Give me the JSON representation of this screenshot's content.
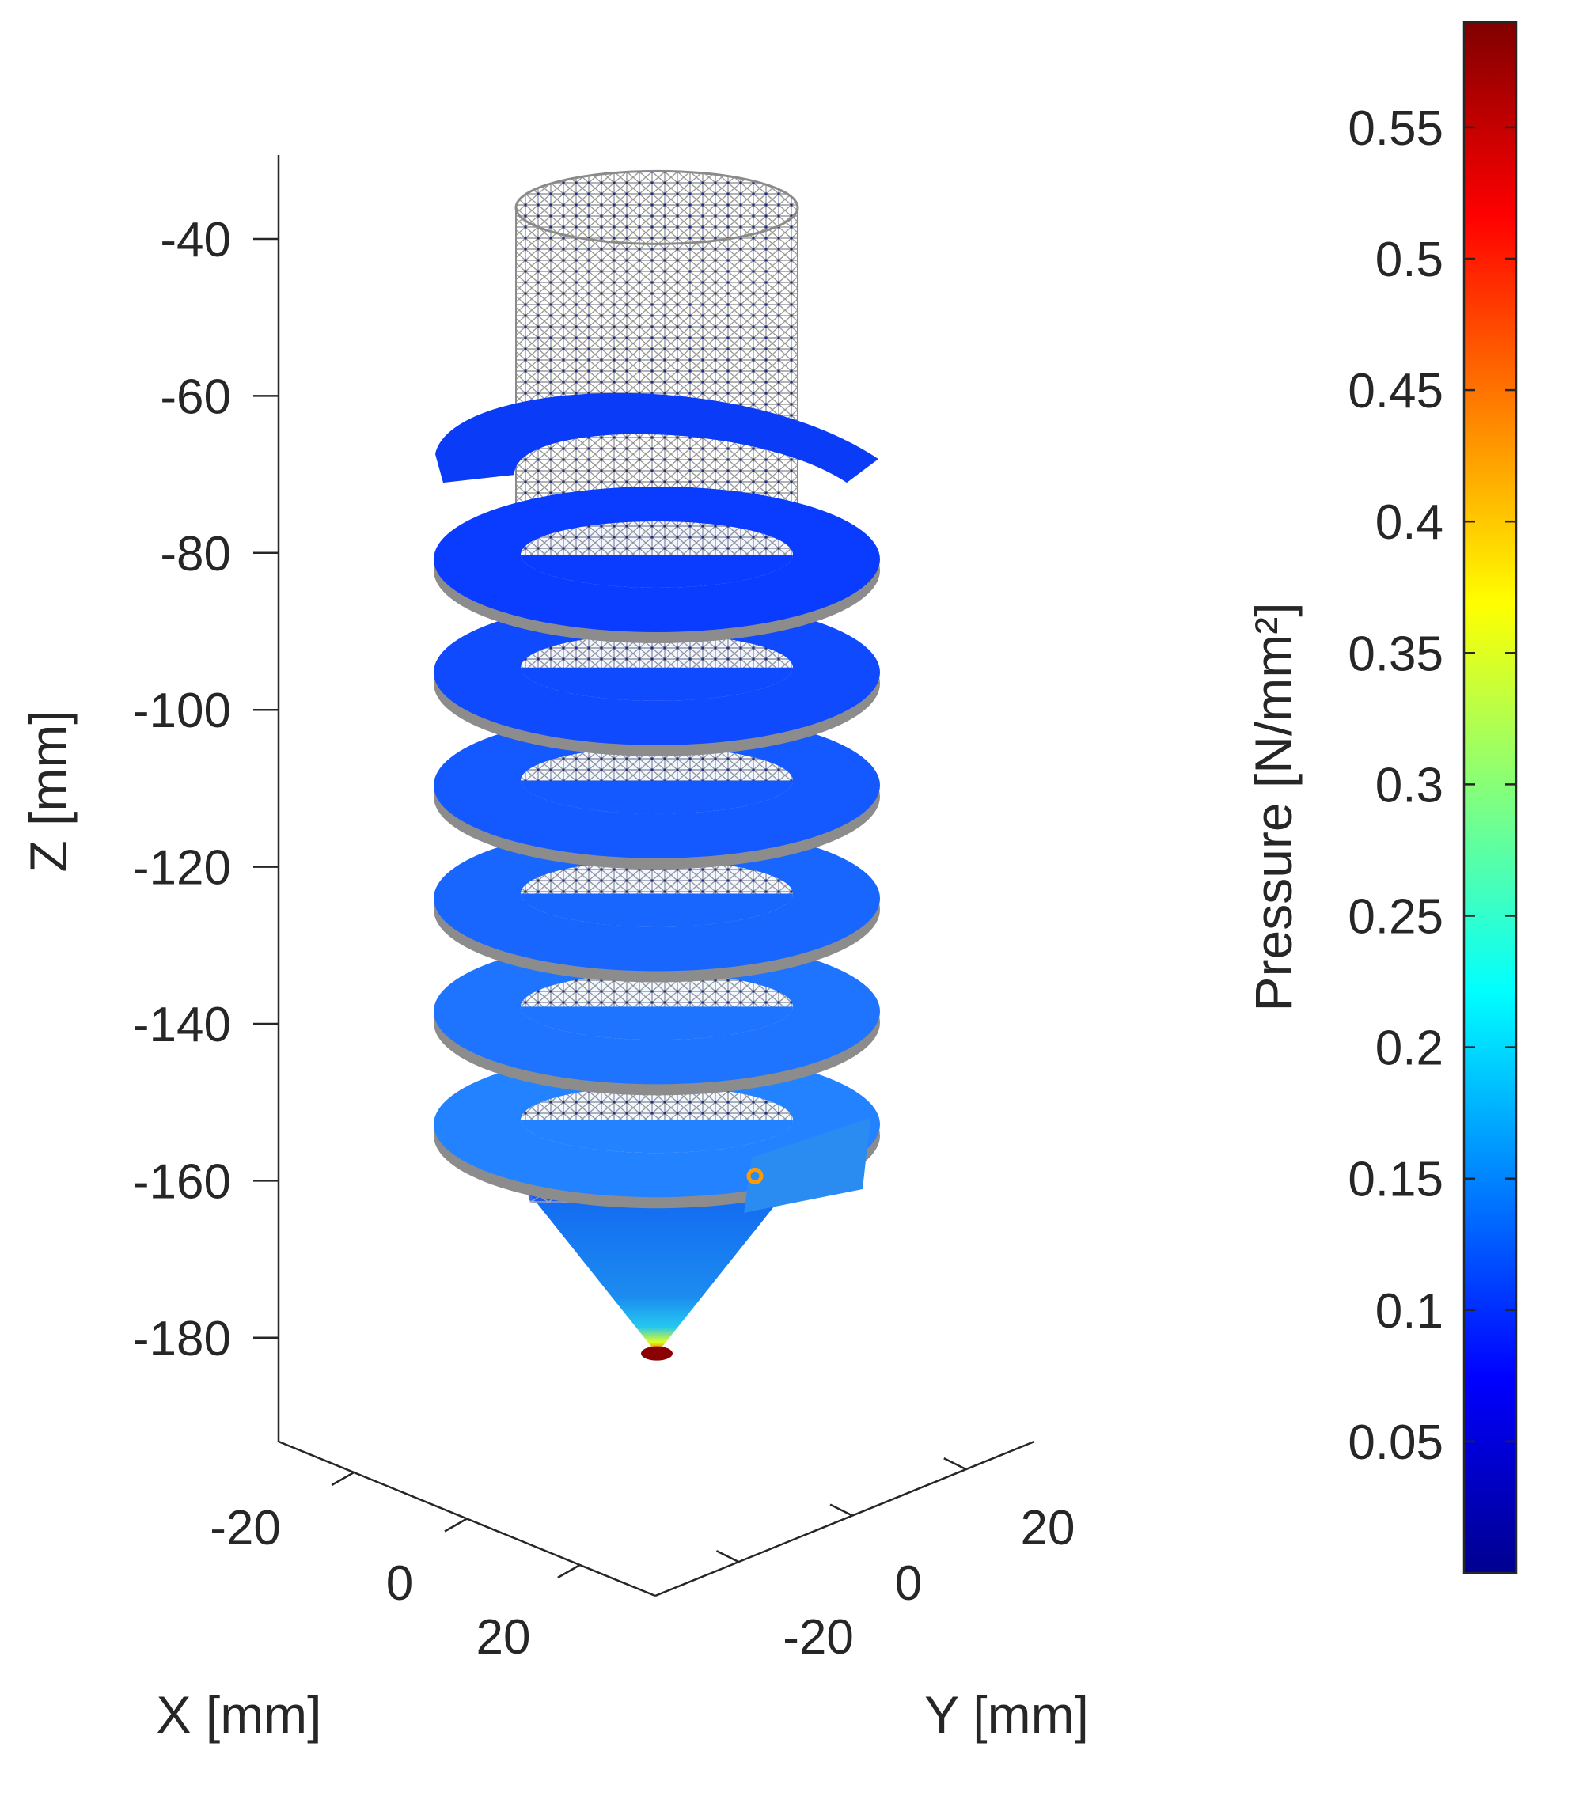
{
  "chart_data": {
    "type": "3d-surface",
    "title": "",
    "xlabel": "X  [mm]",
    "ylabel": "Y  [mm]",
    "zlabel": "Z  [mm]",
    "x_ticks": [
      -20,
      0,
      20
    ],
    "y_ticks": [
      -20,
      0,
      20
    ],
    "z_ticks": [
      -40,
      -60,
      -80,
      -100,
      -120,
      -140,
      -160,
      -180
    ],
    "zlim": [
      -190,
      -30
    ],
    "colorbar": {
      "label": "Pressure [N/mm²]",
      "colormap": "jet",
      "limits": [
        0,
        0.59
      ],
      "ticks": [
        0.05,
        0.1,
        0.15,
        0.2,
        0.25,
        0.3,
        0.35,
        0.4,
        0.45,
        0.5,
        0.55
      ],
      "tick_labels": [
        "0.05",
        "0.1",
        "0.15",
        "0.2",
        "0.25",
        "0.3",
        "0.35",
        "0.4",
        "0.45",
        "0.5",
        "0.55"
      ]
    },
    "object": {
      "shaft": {
        "radius": 12,
        "z_top": -36,
        "z_bottom": -158
      },
      "helix": {
        "z_start": -78,
        "z_end": -150,
        "turns": 6,
        "outer_radius": 28,
        "pressure": 0.09
      },
      "tip": {
        "z_base": -160,
        "z_apex": -182,
        "pressure_base": 0.12,
        "pressure_apex": 0.58
      },
      "mesh_color": "#a0a0a0",
      "node_color": "#1b2a8a"
    },
    "colors": {
      "mesh": "#9a9a9a",
      "surface_low": "#0030ff",
      "surface_mid": "#1f7cf0",
      "apex": "#8b0000",
      "marker": "#ff9a00"
    }
  }
}
